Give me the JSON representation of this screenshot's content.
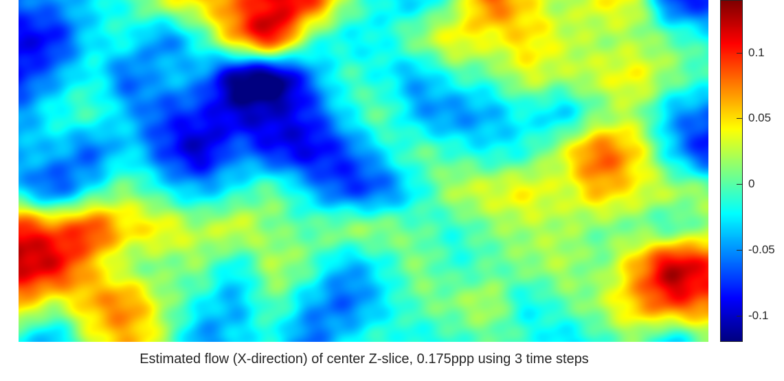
{
  "chart_data": {
    "type": "heatmap",
    "title": "Estimated flow (X-direction) of center Z-slice, 0.175ppp using 3 time steps",
    "colormap": "jet",
    "clim": [
      -0.12,
      0.14
    ],
    "colorbar_ticks": [
      {
        "value": 0.1,
        "label": "0.1"
      },
      {
        "value": 0.05,
        "label": "0.05"
      },
      {
        "value": 0,
        "label": "0"
      },
      {
        "value": -0.05,
        "label": "-0.05"
      },
      {
        "value": -0.1,
        "label": "-0.1"
      }
    ],
    "grid_size": [
      20,
      10
    ],
    "values": [
      [
        -0.06,
        -0.05,
        -0.03,
        -0.01,
        0.03,
        0.05,
        0.08,
        0.11,
        0.1,
        0.02,
        -0.02,
        -0.03,
        0.01,
        0.08,
        0.05,
        0.02,
        0.04,
        0.03,
        -0.07,
        -0.08
      ],
      [
        -0.09,
        -0.08,
        -0.03,
        -0.02,
        -0.05,
        -0.01,
        0.06,
        0.1,
        0.01,
        -0.02,
        -0.02,
        0.01,
        0.04,
        0.04,
        0.05,
        0.03,
        0.02,
        0.02,
        0.0,
        -0.02
      ],
      [
        -0.08,
        -0.05,
        -0.02,
        -0.06,
        -0.04,
        -0.05,
        -0.11,
        -0.12,
        -0.06,
        -0.01,
        -0.02,
        -0.04,
        -0.01,
        0.0,
        0.03,
        0.02,
        0.03,
        0.04,
        0.01,
        -0.01
      ],
      [
        -0.05,
        -0.02,
        -0.01,
        -0.04,
        -0.07,
        -0.08,
        -0.1,
        -0.1,
        -0.08,
        -0.03,
        0.0,
        -0.04,
        -0.05,
        -0.04,
        -0.02,
        -0.03,
        0.01,
        0.02,
        -0.04,
        -0.06
      ],
      [
        -0.04,
        -0.04,
        -0.06,
        -0.03,
        -0.07,
        -0.1,
        -0.06,
        -0.08,
        -0.09,
        -0.07,
        -0.03,
        0.0,
        -0.01,
        -0.02,
        -0.01,
        0.03,
        0.08,
        0.05,
        -0.03,
        -0.08
      ],
      [
        -0.03,
        -0.06,
        -0.02,
        0.01,
        -0.02,
        -0.04,
        -0.02,
        0.0,
        -0.04,
        -0.07,
        -0.06,
        -0.02,
        0.02,
        0.03,
        0.04,
        0.03,
        0.06,
        0.04,
        0.02,
        0.01
      ],
      [
        0.1,
        0.08,
        0.09,
        0.05,
        0.04,
        0.02,
        0.03,
        0.01,
        0.0,
        0.01,
        0.01,
        0.0,
        -0.01,
        0.01,
        0.02,
        0.02,
        0.01,
        0.01,
        0.0,
        0.02
      ],
      [
        0.12,
        0.11,
        0.06,
        0.02,
        0.01,
        0.01,
        -0.02,
        0.02,
        0.0,
        -0.04,
        -0.02,
        0.01,
        -0.01,
        0.0,
        0.01,
        0.02,
        0.01,
        0.06,
        0.12,
        0.1
      ],
      [
        0.06,
        0.03,
        0.06,
        0.07,
        0.02,
        -0.02,
        -0.04,
        0.0,
        -0.04,
        -0.06,
        -0.03,
        0.0,
        0.01,
        0.02,
        -0.02,
        0.0,
        0.02,
        0.06,
        0.09,
        0.08
      ],
      [
        -0.02,
        -0.04,
        0.03,
        0.06,
        0.02,
        -0.05,
        -0.03,
        -0.02,
        -0.06,
        -0.03,
        -0.01,
        -0.02,
        -0.01,
        0.0,
        -0.01,
        -0.03,
        -0.01,
        0.01,
        -0.03,
        0.01
      ]
    ]
  }
}
